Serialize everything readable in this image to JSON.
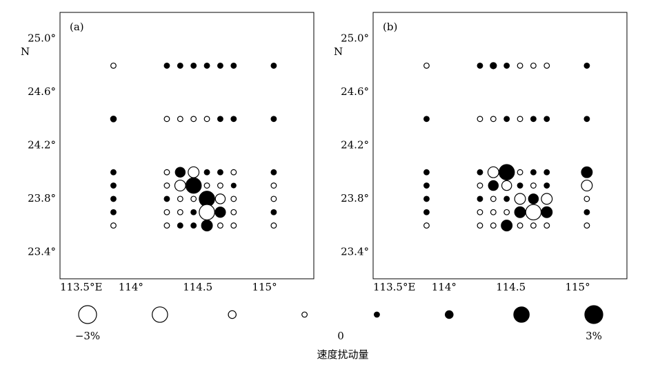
{
  "chart_data": [
    {
      "type": "scatter",
      "panel_label": "(a)",
      "x": [
        113.9,
        114.3,
        114.4,
        114.5,
        114.6,
        114.7,
        114.8,
        115.1,
        113.9,
        114.3,
        114.4,
        114.5,
        114.6,
        114.7,
        114.8,
        115.1,
        113.9,
        114.3,
        114.4,
        114.5,
        114.6,
        114.7,
        114.8,
        115.1,
        113.9,
        114.3,
        114.4,
        114.5,
        114.6,
        114.7,
        114.8,
        115.1,
        113.9,
        114.3,
        114.4,
        114.5,
        114.6,
        114.7,
        114.8,
        115.1,
        113.9,
        114.3,
        114.4,
        114.5,
        114.6,
        114.7,
        114.8,
        115.1,
        113.9,
        114.3,
        114.4,
        114.5,
        114.6,
        114.7,
        114.8,
        115.1
      ],
      "y": [
        24.8,
        24.8,
        24.8,
        24.8,
        24.8,
        24.8,
        24.8,
        24.8,
        24.4,
        24.4,
        24.4,
        24.4,
        24.4,
        24.4,
        24.4,
        24.4,
        24.0,
        24.0,
        24.0,
        24.0,
        24.0,
        24.0,
        24.0,
        24.0,
        23.9,
        23.9,
        23.9,
        23.9,
        23.9,
        23.9,
        23.9,
        23.9,
        23.8,
        23.8,
        23.8,
        23.8,
        23.8,
        23.8,
        23.8,
        23.8,
        23.7,
        23.7,
        23.7,
        23.7,
        23.7,
        23.7,
        23.7,
        23.7,
        23.6,
        23.6,
        23.6,
        23.6,
        23.6,
        23.6,
        23.6,
        23.6
      ],
      "values": [
        -0.5,
        0.5,
        0.5,
        0.5,
        0.5,
        0.5,
        0.5,
        0.5,
        0.6,
        -0.5,
        -0.5,
        -0.5,
        -0.5,
        0.5,
        0.5,
        0.5,
        0.5,
        -0.5,
        1.4,
        -1.6,
        0.5,
        0.5,
        -0.5,
        0.5,
        0.5,
        -0.5,
        -1.6,
        2.5,
        -0.5,
        -0.5,
        0.4,
        -0.5,
        0.5,
        0.5,
        -0.5,
        -0.5,
        2.5,
        -1.4,
        -0.5,
        -0.5,
        0.5,
        -0.5,
        -0.5,
        0.5,
        -2.5,
        1.5,
        -0.5,
        0.5,
        -0.5,
        -0.5,
        0.5,
        0.5,
        1.6,
        -0.5,
        -0.5,
        -0.5
      ],
      "xlim": [
        113.5,
        115.4
      ],
      "ylim": [
        23.2,
        25.2
      ],
      "xticks": [
        {
          "value": 113.5,
          "label": "113.5°E"
        },
        {
          "value": 114,
          "label": "114°"
        },
        {
          "value": 114.5,
          "label": "114.5"
        },
        {
          "value": 115,
          "label": "115°"
        }
      ],
      "yticks": [
        {
          "value": 25.0,
          "label": "25.0°"
        },
        {
          "value": 24.6,
          "label": "24.6°"
        },
        {
          "value": 24.2,
          "label": "24.2°"
        },
        {
          "value": 23.8,
          "label": "23.8°"
        },
        {
          "value": 23.4,
          "label": "23.4°"
        }
      ],
      "ylabel": "N",
      "color": "#000000"
    },
    {
      "type": "scatter",
      "panel_label": "(b)",
      "x": [
        113.9,
        114.3,
        114.4,
        114.5,
        114.6,
        114.7,
        114.8,
        115.1,
        113.9,
        114.3,
        114.4,
        114.5,
        114.6,
        114.7,
        114.8,
        115.1,
        113.9,
        114.3,
        114.4,
        114.5,
        114.6,
        114.7,
        114.8,
        115.1,
        113.9,
        114.3,
        114.4,
        114.5,
        114.6,
        114.7,
        114.8,
        115.1,
        113.9,
        114.3,
        114.4,
        114.5,
        114.6,
        114.7,
        114.8,
        115.1,
        113.9,
        114.3,
        114.4,
        114.5,
        114.6,
        114.7,
        114.8,
        115.1,
        113.9,
        114.3,
        114.4,
        114.5,
        114.6,
        114.7,
        114.8,
        115.1
      ],
      "y": [
        24.8,
        24.8,
        24.8,
        24.8,
        24.8,
        24.8,
        24.8,
        24.8,
        24.4,
        24.4,
        24.4,
        24.4,
        24.4,
        24.4,
        24.4,
        24.4,
        24.0,
        24.0,
        24.0,
        24.0,
        24.0,
        24.0,
        24.0,
        24.0,
        23.9,
        23.9,
        23.9,
        23.9,
        23.9,
        23.9,
        23.9,
        23.9,
        23.8,
        23.8,
        23.8,
        23.8,
        23.8,
        23.8,
        23.8,
        23.8,
        23.7,
        23.7,
        23.7,
        23.7,
        23.7,
        23.7,
        23.7,
        23.7,
        23.6,
        23.6,
        23.6,
        23.6,
        23.6,
        23.6,
        23.6,
        23.6
      ],
      "values": [
        -0.5,
        0.5,
        0.7,
        0.5,
        -0.5,
        -0.5,
        -0.5,
        0.5,
        0.5,
        -0.5,
        -0.5,
        0.5,
        -0.5,
        0.5,
        0.5,
        0.5,
        0.5,
        0.5,
        -1.6,
        2.5,
        -0.5,
        0.5,
        0.5,
        1.6,
        0.5,
        -0.5,
        1.4,
        -1.4,
        0.5,
        -0.5,
        0.5,
        -1.6,
        0.5,
        0.5,
        -0.5,
        0.5,
        -1.6,
        1.4,
        -1.6,
        -0.5,
        0.5,
        -0.5,
        -0.5,
        -0.5,
        1.6,
        -2.5,
        1.6,
        0.5,
        -0.5,
        -0.5,
        -0.5,
        1.6,
        -0.5,
        -0.5,
        -0.5,
        -0.5
      ],
      "xlim": [
        113.5,
        115.4
      ],
      "ylim": [
        23.2,
        25.2
      ],
      "xticks": [
        {
          "value": 113.5,
          "label": "113.5°E"
        },
        {
          "value": 114,
          "label": "114°"
        },
        {
          "value": 114.5,
          "label": "114.5"
        },
        {
          "value": 115,
          "label": "115°"
        }
      ],
      "yticks": [
        {
          "value": 25.0,
          "label": "25.0°"
        },
        {
          "value": 24.6,
          "label": "24.6°"
        },
        {
          "value": 24.2,
          "label": "24.2°"
        },
        {
          "value": 23.8,
          "label": "23.8°"
        },
        {
          "value": 23.4,
          "label": "23.4°"
        }
      ],
      "ylabel": "N",
      "color": "#000000"
    }
  ],
  "legend": {
    "title": "速度扰动量",
    "values": [
      -3,
      -2.5,
      -1,
      -0.5,
      0.5,
      1,
      2.5,
      3
    ],
    "labels": [
      {
        "value": -3,
        "label": "−3%"
      },
      {
        "value": 0,
        "label": "0"
      },
      {
        "value": 3,
        "label": "3%"
      }
    ]
  }
}
